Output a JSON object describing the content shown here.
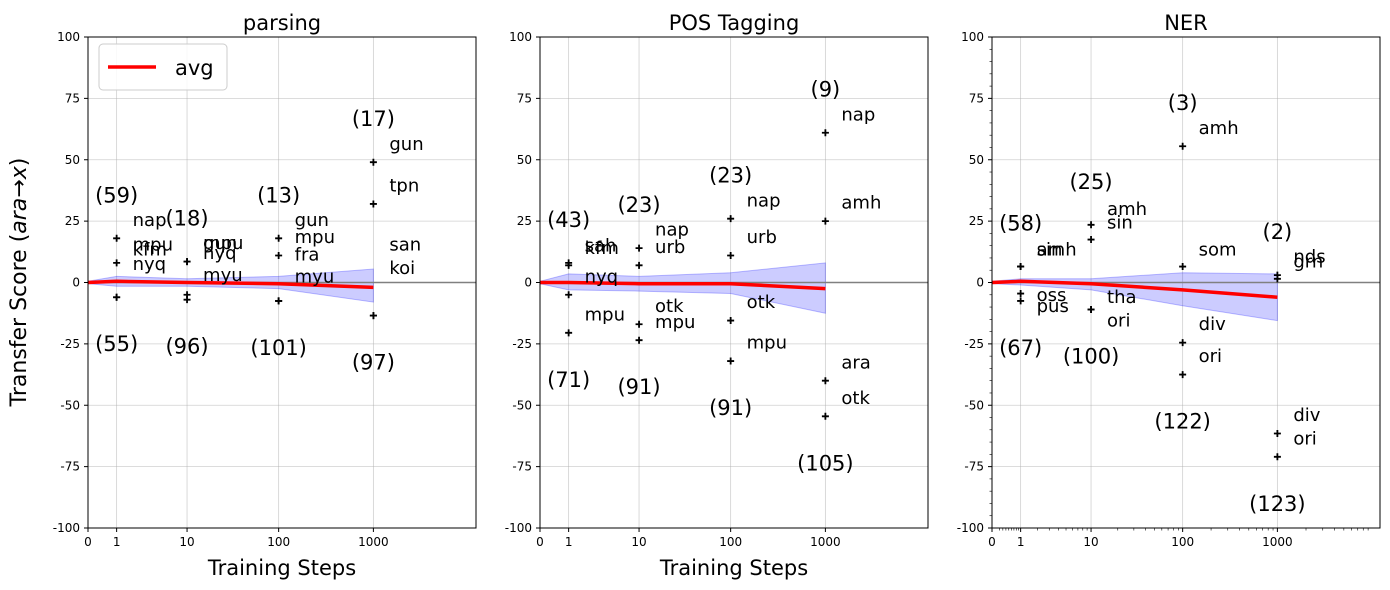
{
  "figure": {
    "ylabel_prefix": "Transfer Score (",
    "ylabel_var_a": "ara",
    "ylabel_arrow": "→",
    "ylabel_var_b": "x",
    "ylabel_suffix": ")",
    "legend_label": "avg",
    "colors": {
      "avg": "#ff0000",
      "band": "#0000ff",
      "zero_line": "#808080",
      "marker": "#000000"
    }
  },
  "chart_data": [
    {
      "type": "scatter",
      "title": "parsing",
      "xlabel": "Training Steps",
      "ylabel": "Transfer Score (ara→x)",
      "xscale": "symlog",
      "xticks": [
        0,
        1,
        10,
        100,
        1000
      ],
      "xtick_labels": [
        "0",
        "1",
        "10",
        "100",
        "1000"
      ],
      "xlim": [
        0,
        12000
      ],
      "ylim": [
        -100,
        100
      ],
      "yticks": [
        -100,
        -75,
        -50,
        -25,
        0,
        25,
        50,
        75,
        100
      ],
      "grid": true,
      "legend": "upper-left",
      "points": [
        {
          "x": 1,
          "y": 18,
          "label": "nap"
        },
        {
          "x": 1,
          "y": 8,
          "label": "mpu"
        },
        {
          "x": 1,
          "y": -6,
          "label": "nyq"
        },
        {
          "x": 1,
          "y": -6,
          "label": "kfm"
        },
        {
          "x": 10,
          "y": 8.5,
          "label": "mpu"
        },
        {
          "x": 10,
          "y": 8.5,
          "label": "gun"
        },
        {
          "x": 10,
          "y": -5,
          "label": "myu"
        },
        {
          "x": 10,
          "y": -7,
          "label": "nyq"
        },
        {
          "x": 100,
          "y": 18,
          "label": "gun"
        },
        {
          "x": 100,
          "y": 11,
          "label": "mpu"
        },
        {
          "x": 100,
          "y": -7.5,
          "label": "myu"
        },
        {
          "x": 100,
          "y": -7.5,
          "label": "fra"
        },
        {
          "x": 1000,
          "y": 49,
          "label": "gun"
        },
        {
          "x": 1000,
          "y": 32,
          "label": "tpn"
        },
        {
          "x": 1000,
          "y": -13.5,
          "label": "koi"
        },
        {
          "x": 1000,
          "y": -13.5,
          "label": "san"
        }
      ],
      "point_labels": [
        {
          "x": 1,
          "text": "nap",
          "y": 25.5
        },
        {
          "x": 1,
          "text": "mpu",
          "y": 15.5
        },
        {
          "x": 1,
          "text": "nyq",
          "y": 7.5
        },
        {
          "x": 1,
          "text": "kfm",
          "y": 13.5
        },
        {
          "x": 10,
          "text": "mpu",
          "y": 16
        },
        {
          "x": 10,
          "text": "gun",
          "y": 16
        },
        {
          "x": 10,
          "text": "myu",
          "y": 3
        },
        {
          "x": 10,
          "text": "nyq",
          "y": 12
        },
        {
          "x": 100,
          "text": "gun",
          "y": 25.5
        },
        {
          "x": 100,
          "text": "mpu",
          "y": 18.5
        },
        {
          "x": 100,
          "text": "myu",
          "y": 2.5
        },
        {
          "x": 100,
          "text": "fra",
          "y": 11.5
        },
        {
          "x": 1000,
          "text": "gun",
          "y": 56.5
        },
        {
          "x": 1000,
          "text": "tpn",
          "y": 39.5
        },
        {
          "x": 1000,
          "text": "koi",
          "y": 6
        },
        {
          "x": 1000,
          "text": "san",
          "y": 15.5
        }
      ],
      "count_labels": [
        {
          "x": 1,
          "position": "above",
          "text": "(59)"
        },
        {
          "x": 1,
          "position": "below",
          "text": "(55)"
        },
        {
          "x": 10,
          "position": "above",
          "text": "(18)"
        },
        {
          "x": 10,
          "position": "below",
          "text": "(96)"
        },
        {
          "x": 100,
          "position": "above",
          "text": "(13)"
        },
        {
          "x": 100,
          "position": "below",
          "text": "(101)"
        },
        {
          "x": 1000,
          "position": "above",
          "text": "(17)"
        },
        {
          "x": 1000,
          "position": "below",
          "text": "(97)"
        }
      ],
      "avg_line": {
        "x": [
          0,
          1,
          10,
          100,
          1000
        ],
        "y": [
          0,
          0.5,
          0,
          -0.5,
          -2
        ]
      },
      "band": {
        "x": [
          0,
          1,
          10,
          100,
          1000
        ],
        "upper": [
          0.5,
          2.5,
          1.5,
          2.5,
          5.5
        ],
        "lower": [
          -0.5,
          -1.5,
          -1.5,
          -2.5,
          -8
        ]
      }
    },
    {
      "type": "scatter",
      "title": "POS Tagging",
      "xlabel": "Training Steps",
      "ylabel": "",
      "xscale": "symlog",
      "xticks": [
        0,
        1,
        10,
        100,
        1000
      ],
      "xtick_labels": [
        "0",
        "1",
        "10",
        "100",
        "1000"
      ],
      "xlim": [
        0,
        12000
      ],
      "ylim": [
        -100,
        100
      ],
      "yticks": [
        -100,
        -75,
        -50,
        -25,
        0,
        25,
        50,
        75,
        100
      ],
      "grid": true,
      "points": [
        {
          "x": 1,
          "y": 8,
          "label": "sah"
        },
        {
          "x": 1,
          "y": 7,
          "label": "kfm"
        },
        {
          "x": 1,
          "y": -5,
          "label": "nyq"
        },
        {
          "x": 1,
          "y": -20.5,
          "label": "mpu"
        },
        {
          "x": 10,
          "y": 14,
          "label": "nap"
        },
        {
          "x": 10,
          "y": 7,
          "label": "urb"
        },
        {
          "x": 10,
          "y": -17,
          "label": "otk"
        },
        {
          "x": 10,
          "y": -23.5,
          "label": "mpu"
        },
        {
          "x": 100,
          "y": 26,
          "label": "nap"
        },
        {
          "x": 100,
          "y": 11,
          "label": "urb"
        },
        {
          "x": 100,
          "y": -15.5,
          "label": "otk"
        },
        {
          "x": 100,
          "y": -32,
          "label": "mpu"
        },
        {
          "x": 1000,
          "y": 61,
          "label": "nap"
        },
        {
          "x": 1000,
          "y": 25,
          "label": "amh"
        },
        {
          "x": 1000,
          "y": -40,
          "label": "ara"
        },
        {
          "x": 1000,
          "y": -54.5,
          "label": "otk"
        }
      ],
      "point_labels": [
        {
          "x": 1,
          "text": "sah",
          "y": 15
        },
        {
          "x": 1,
          "text": "kfm",
          "y": 14
        },
        {
          "x": 1,
          "text": "nyq",
          "y": 2.5
        },
        {
          "x": 1,
          "text": "mpu",
          "y": -13
        },
        {
          "x": 10,
          "text": "nap",
          "y": 21.5
        },
        {
          "x": 10,
          "text": "urb",
          "y": 14.5
        },
        {
          "x": 10,
          "text": "otk",
          "y": -9.5
        },
        {
          "x": 10,
          "text": "mpu",
          "y": -16
        },
        {
          "x": 100,
          "text": "nap",
          "y": 33.5
        },
        {
          "x": 100,
          "text": "urb",
          "y": 18.5
        },
        {
          "x": 100,
          "text": "otk",
          "y": -8
        },
        {
          "x": 100,
          "text": "mpu",
          "y": -24.5
        },
        {
          "x": 1000,
          "text": "nap",
          "y": 68.5
        },
        {
          "x": 1000,
          "text": "amh",
          "y": 32.5
        },
        {
          "x": 1000,
          "text": "ara",
          "y": -32.5
        },
        {
          "x": 1000,
          "text": "otk",
          "y": -47
        }
      ],
      "count_labels": [
        {
          "x": 1,
          "position": "above",
          "text": "(43)"
        },
        {
          "x": 1,
          "position": "below",
          "text": "(71)"
        },
        {
          "x": 10,
          "position": "above",
          "text": "(23)"
        },
        {
          "x": 10,
          "position": "below",
          "text": "(91)"
        },
        {
          "x": 100,
          "position": "above",
          "text": "(23)"
        },
        {
          "x": 100,
          "position": "below",
          "text": "(91)"
        },
        {
          "x": 1000,
          "position": "above",
          "text": "(9)"
        },
        {
          "x": 1000,
          "position": "below",
          "text": "(105)"
        }
      ],
      "avg_line": {
        "x": [
          0,
          1,
          10,
          100,
          1000
        ],
        "y": [
          0,
          0,
          -0.5,
          -0.5,
          -2.5
        ]
      },
      "band": {
        "x": [
          0,
          1,
          10,
          100,
          1000
        ],
        "upper": [
          0.5,
          3.5,
          2.5,
          4,
          8
        ],
        "lower": [
          -0.5,
          -3,
          -3.5,
          -4.5,
          -12.5
        ]
      }
    },
    {
      "type": "scatter",
      "title": "NER",
      "xlabel": "",
      "ylabel": "",
      "xscale": "symlog",
      "xticks": [
        0,
        1,
        10,
        100,
        1000
      ],
      "xtick_labels": [
        "0",
        "1",
        "10",
        "100",
        "1000"
      ],
      "xlim": [
        0,
        12000
      ],
      "ylim": [
        -100,
        100
      ],
      "yticks": [
        -100,
        -75,
        -50,
        -25,
        0,
        25,
        50,
        75,
        100
      ],
      "grid": true,
      "minor_ticks": true,
      "points": [
        {
          "x": 1,
          "y": 6.5,
          "label": "sin"
        },
        {
          "x": 1,
          "y": 6.5,
          "label": "amh"
        },
        {
          "x": 1,
          "y": -4.5,
          "label": "oss"
        },
        {
          "x": 1,
          "y": -7.5,
          "label": "pus"
        },
        {
          "x": 10,
          "y": 23.5,
          "label": "amh"
        },
        {
          "x": 10,
          "y": 17.5,
          "label": "sin"
        },
        {
          "x": 10,
          "y": -11,
          "label": "tha"
        },
        {
          "x": 10,
          "y": -11,
          "label": "ori"
        },
        {
          "x": 100,
          "y": 55.5,
          "label": "amh"
        },
        {
          "x": 100,
          "y": 6.5,
          "label": "som"
        },
        {
          "x": 100,
          "y": -24.5,
          "label": "div"
        },
        {
          "x": 100,
          "y": -37.5,
          "label": "ori"
        },
        {
          "x": 1000,
          "y": 3,
          "label": "nds"
        },
        {
          "x": 1000,
          "y": 1.5,
          "label": "grn"
        },
        {
          "x": 1000,
          "y": -61.5,
          "label": "div"
        },
        {
          "x": 1000,
          "y": -71,
          "label": "ori"
        }
      ],
      "point_labels": [
        {
          "x": 1,
          "text": "sin",
          "y": 13.5
        },
        {
          "x": 1,
          "text": "amh",
          "y": 13.5
        },
        {
          "x": 1,
          "text": "oss",
          "y": -5
        },
        {
          "x": 1,
          "text": "pus",
          "y": -9.5
        },
        {
          "x": 10,
          "text": "amh",
          "y": 30
        },
        {
          "x": 10,
          "text": "sin",
          "y": 24.5
        },
        {
          "x": 10,
          "text": "tha",
          "y": -6
        },
        {
          "x": 10,
          "text": "ori",
          "y": -15.5
        },
        {
          "x": 100,
          "text": "amh",
          "y": 63
        },
        {
          "x": 100,
          "text": "som",
          "y": 13.5
        },
        {
          "x": 100,
          "text": "div",
          "y": -17
        },
        {
          "x": 100,
          "text": "ori",
          "y": -30
        },
        {
          "x": 1000,
          "text": "nds",
          "y": 10.5
        },
        {
          "x": 1000,
          "text": "grn",
          "y": 8.5
        },
        {
          "x": 1000,
          "text": "div",
          "y": -54
        },
        {
          "x": 1000,
          "text": "ori",
          "y": -63.5
        }
      ],
      "count_labels": [
        {
          "x": 1,
          "position": "above",
          "text": "(58)"
        },
        {
          "x": 1,
          "position": "below",
          "text": "(67)"
        },
        {
          "x": 10,
          "position": "above",
          "text": "(25)"
        },
        {
          "x": 10,
          "position": "below",
          "text": "(100)"
        },
        {
          "x": 100,
          "position": "above",
          "text": "(3)"
        },
        {
          "x": 100,
          "position": "below",
          "text": "(122)"
        },
        {
          "x": 1000,
          "position": "above",
          "text": "(2)"
        },
        {
          "x": 1000,
          "position": "below",
          "text": "(123)"
        }
      ],
      "avg_line": {
        "x": [
          0,
          1,
          10,
          100,
          1000
        ],
        "y": [
          0,
          0.5,
          -0.5,
          -3,
          -6
        ]
      },
      "band": {
        "x": [
          0,
          1,
          10,
          100,
          1000
        ],
        "upper": [
          0.5,
          1.5,
          1.5,
          4,
          3.5
        ],
        "lower": [
          -0.5,
          -1,
          -3,
          -9.5,
          -15.5
        ]
      }
    }
  ]
}
